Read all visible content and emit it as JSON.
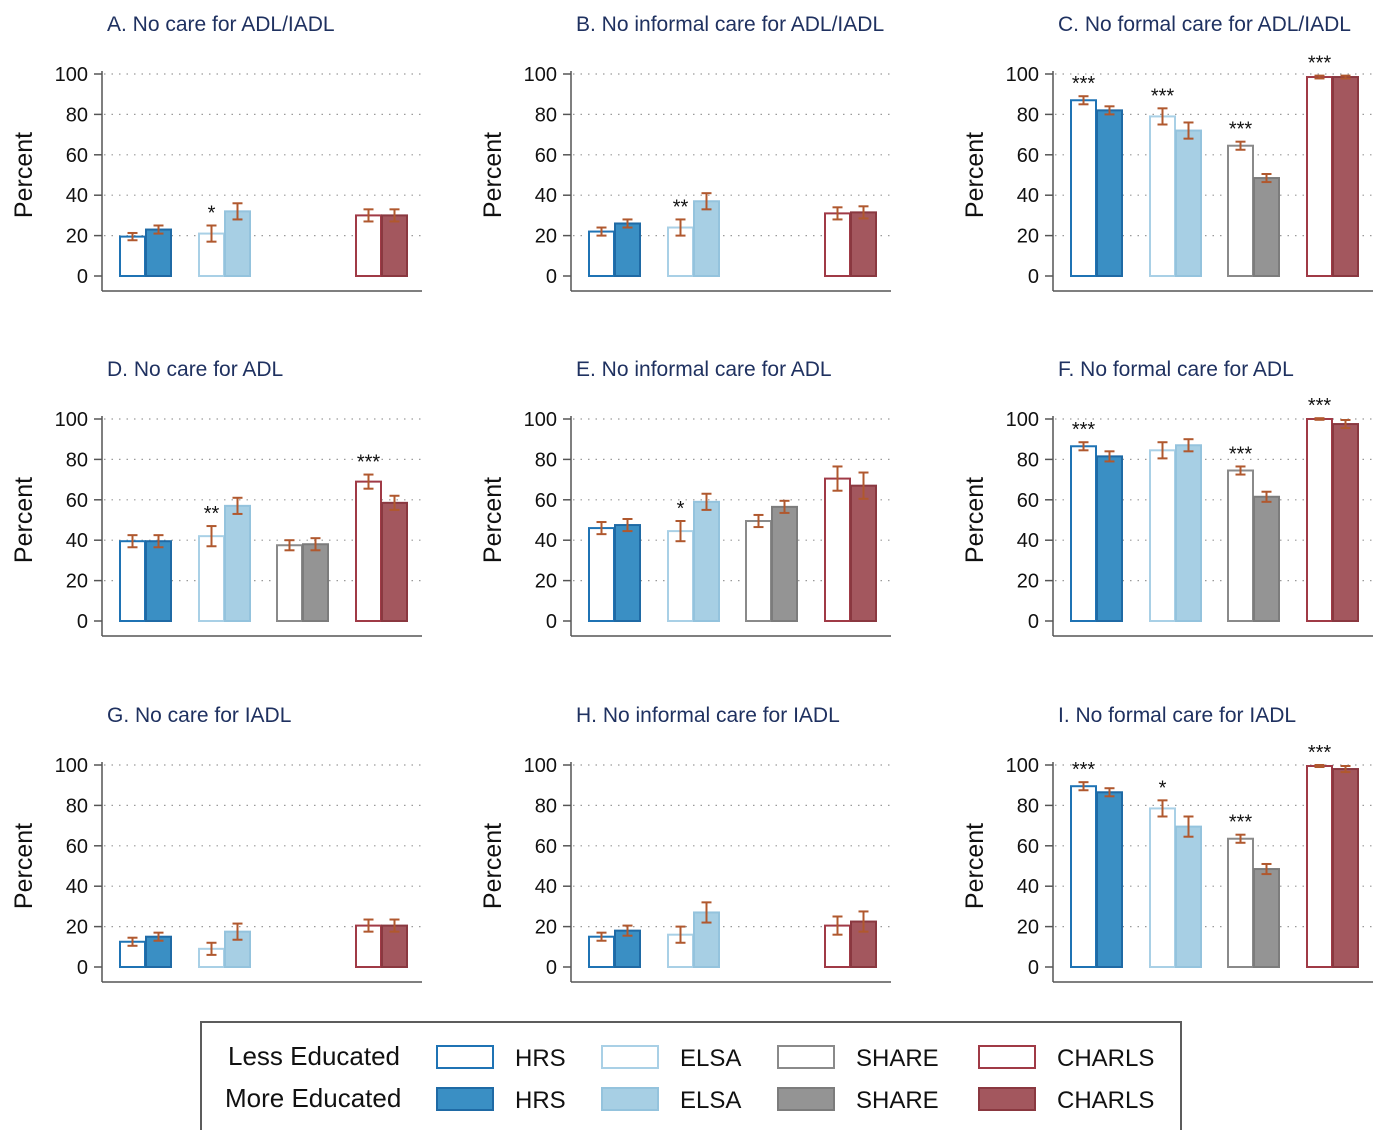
{
  "chart_data": {
    "type": "bar",
    "y_axis_label": "Percent",
    "y_ticks": [
      0,
      20,
      40,
      60,
      80,
      100
    ],
    "ylim": [
      0,
      100
    ],
    "grid": "dotted horizontal",
    "groups": [
      "HRS",
      "ELSA",
      "SHARE",
      "CHARLS"
    ],
    "education_levels": [
      "Less Educated",
      "More Educated"
    ],
    "colors": {
      "HRS": {
        "less_stroke": "#1f73b4",
        "less_fill": "#ffffff",
        "more_fill": "#3a8fc4",
        "more_stroke": "#1f6aa5"
      },
      "ELSA": {
        "less_stroke": "#a9d0e6",
        "less_fill": "#ffffff",
        "more_fill": "#a7cfe4",
        "more_stroke": "#94c3dd"
      },
      "SHARE": {
        "less_stroke": "#8a8a8a",
        "less_fill": "#ffffff",
        "more_fill": "#949494",
        "more_stroke": "#7c7c7c"
      },
      "CHARLS": {
        "less_stroke": "#a03a46",
        "less_fill": "#ffffff",
        "more_fill": "#a3575e",
        "more_stroke": "#8a3840"
      },
      "error_bar": "#b0582e"
    },
    "panels": [
      {
        "title": "A. No care for ADL/IADL",
        "bars": [
          {
            "group": "HRS",
            "less": 19.5,
            "less_err": 1.8,
            "more": 23,
            "more_err": 2,
            "sig": ""
          },
          {
            "group": "ELSA",
            "less": 21,
            "less_err": 4,
            "more": 32,
            "more_err": 4,
            "sig": "*"
          },
          {
            "group": "SHARE",
            "less": null,
            "less_err": null,
            "more": null,
            "more_err": null,
            "sig": ""
          },
          {
            "group": "CHARLS",
            "less": 30,
            "less_err": 3,
            "more": 30,
            "more_err": 3,
            "sig": ""
          }
        ]
      },
      {
        "title": "B. No informal care for ADL/IADL",
        "bars": [
          {
            "group": "HRS",
            "less": 22,
            "less_err": 2,
            "more": 26,
            "more_err": 2,
            "sig": ""
          },
          {
            "group": "ELSA",
            "less": 24,
            "less_err": 4,
            "more": 37,
            "more_err": 4,
            "sig": "**"
          },
          {
            "group": "SHARE",
            "less": null,
            "less_err": null,
            "more": null,
            "more_err": null,
            "sig": ""
          },
          {
            "group": "CHARLS",
            "less": 31,
            "less_err": 3,
            "more": 31.5,
            "more_err": 3,
            "sig": ""
          }
        ]
      },
      {
        "title": "C. No formal care for ADL/IADL",
        "bars": [
          {
            "group": "HRS",
            "less": 87,
            "less_err": 2,
            "more": 82,
            "more_err": 2,
            "sig": "***"
          },
          {
            "group": "ELSA",
            "less": 79,
            "less_err": 4,
            "more": 72,
            "more_err": 4,
            "sig": "***"
          },
          {
            "group": "SHARE",
            "less": 64.5,
            "less_err": 2,
            "more": 48.5,
            "more_err": 2,
            "sig": "***"
          },
          {
            "group": "CHARLS",
            "less": 98.5,
            "less_err": 0.7,
            "more": 98.5,
            "more_err": 0.7,
            "sig": "***"
          }
        ]
      },
      {
        "title": "D. No care for ADL",
        "bars": [
          {
            "group": "HRS",
            "less": 39.5,
            "less_err": 3,
            "more": 39.5,
            "more_err": 3,
            "sig": ""
          },
          {
            "group": "ELSA",
            "less": 42,
            "less_err": 5,
            "more": 57,
            "more_err": 4,
            "sig": "**"
          },
          {
            "group": "SHARE",
            "less": 37.5,
            "less_err": 2.5,
            "more": 38,
            "more_err": 3,
            "sig": ""
          },
          {
            "group": "CHARLS",
            "less": 69,
            "less_err": 3.5,
            "more": 58.5,
            "more_err": 3.5,
            "sig": "***"
          }
        ]
      },
      {
        "title": "E. No informal care for ADL",
        "bars": [
          {
            "group": "HRS",
            "less": 46,
            "less_err": 3,
            "more": 47.5,
            "more_err": 3,
            "sig": ""
          },
          {
            "group": "ELSA",
            "less": 44.5,
            "less_err": 5,
            "more": 59,
            "more_err": 4,
            "sig": "*"
          },
          {
            "group": "SHARE",
            "less": 49.5,
            "less_err": 3,
            "more": 56.5,
            "more_err": 3,
            "sig": ""
          },
          {
            "group": "CHARLS",
            "less": 70.5,
            "less_err": 6,
            "more": 67,
            "more_err": 6.5,
            "sig": ""
          }
        ]
      },
      {
        "title": "F. No formal care for ADL",
        "bars": [
          {
            "group": "HRS",
            "less": 86.5,
            "less_err": 2,
            "more": 81.5,
            "more_err": 2.5,
            "sig": "***"
          },
          {
            "group": "ELSA",
            "less": 84.5,
            "less_err": 4,
            "more": 87,
            "more_err": 3,
            "sig": ""
          },
          {
            "group": "SHARE",
            "less": 74.5,
            "less_err": 2,
            "more": 61.5,
            "more_err": 2.5,
            "sig": "***"
          },
          {
            "group": "CHARLS",
            "less": 100,
            "less_err": 0.4,
            "more": 97.5,
            "more_err": 2,
            "sig": "***"
          }
        ]
      },
      {
        "title": "G. No care for IADL",
        "bars": [
          {
            "group": "HRS",
            "less": 12.5,
            "less_err": 2,
            "more": 15,
            "more_err": 2,
            "sig": ""
          },
          {
            "group": "ELSA",
            "less": 9,
            "less_err": 3,
            "more": 17.5,
            "more_err": 4,
            "sig": ""
          },
          {
            "group": "SHARE",
            "less": null,
            "less_err": null,
            "more": null,
            "more_err": null,
            "sig": ""
          },
          {
            "group": "CHARLS",
            "less": 20.5,
            "less_err": 3,
            "more": 20.5,
            "more_err": 3,
            "sig": ""
          }
        ]
      },
      {
        "title": "H. No informal care for IADL",
        "bars": [
          {
            "group": "HRS",
            "less": 15,
            "less_err": 2,
            "more": 18,
            "more_err": 2.5,
            "sig": ""
          },
          {
            "group": "ELSA",
            "less": 16,
            "less_err": 4,
            "more": 27,
            "more_err": 5,
            "sig": ""
          },
          {
            "group": "SHARE",
            "less": null,
            "less_err": null,
            "more": null,
            "more_err": null,
            "sig": ""
          },
          {
            "group": "CHARLS",
            "less": 20.5,
            "less_err": 4.5,
            "more": 22.5,
            "more_err": 5,
            "sig": ""
          }
        ]
      },
      {
        "title": "I. No formal care for IADL",
        "bars": [
          {
            "group": "HRS",
            "less": 89.5,
            "less_err": 2,
            "more": 86.5,
            "more_err": 2,
            "sig": "***"
          },
          {
            "group": "ELSA",
            "less": 78.5,
            "less_err": 4,
            "more": 69.5,
            "more_err": 5,
            "sig": "*"
          },
          {
            "group": "SHARE",
            "less": 63.5,
            "less_err": 2,
            "more": 48.5,
            "more_err": 2.5,
            "sig": "***"
          },
          {
            "group": "CHARLS",
            "less": 99.5,
            "less_err": 0.5,
            "more": 98,
            "more_err": 1.5,
            "sig": "***"
          }
        ]
      }
    ]
  },
  "legend": {
    "less_label": "Less Educated",
    "more_label": "More Educated",
    "items": [
      "HRS",
      "ELSA",
      "SHARE",
      "CHARLS"
    ]
  }
}
